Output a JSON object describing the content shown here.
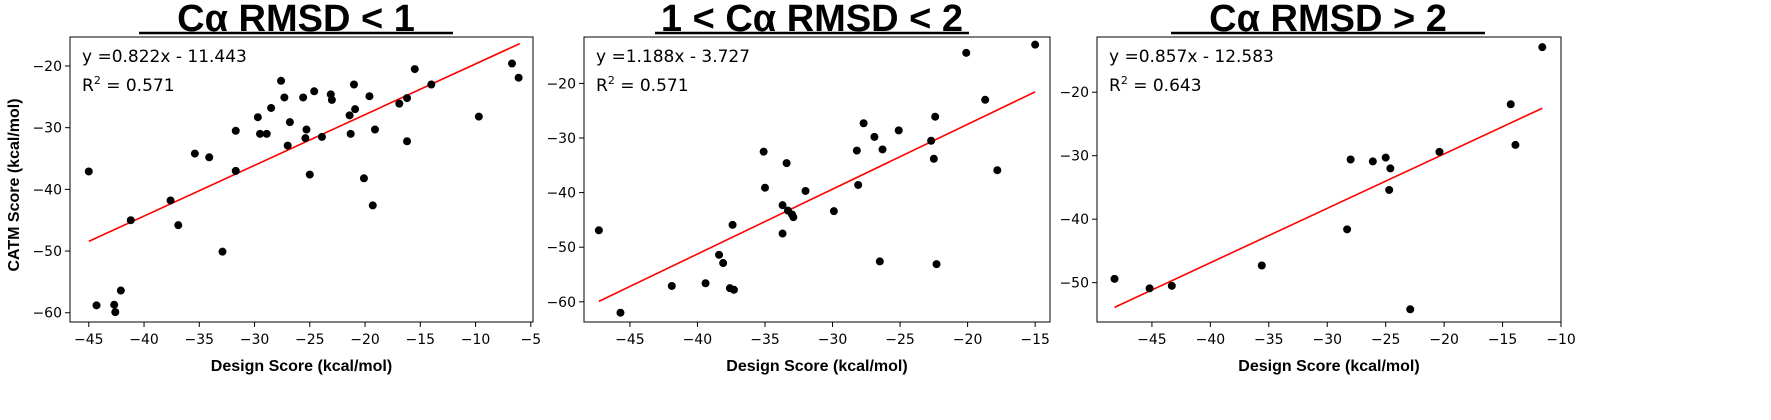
{
  "figure": {
    "y_axis_label": "CATM Score (kcal/mol)"
  },
  "chart_data": [
    {
      "type": "scatter",
      "title": "Cα RMSD < 1",
      "xlabel": "Design Score (kcal/mol)",
      "ylabel": "CATM Score (kcal/mol)",
      "xlim": [
        -46.7,
        -4.8
      ],
      "ylim": [
        -61.5,
        -15.3
      ],
      "xticks": [
        -45,
        -40,
        -35,
        -30,
        -25,
        -20,
        -15,
        -10,
        -5
      ],
      "yticks": [
        -60,
        -50,
        -40,
        -30,
        -20
      ],
      "equation": "y =0.822x - 11.443",
      "r2_label": "R",
      "r2_sup": "2",
      "r2_value": " = 0.571",
      "fit": {
        "slope": 0.822,
        "intercept": -11.443,
        "x_range": [
          -45,
          -6
        ],
        "color": "#ff0000"
      },
      "point_color": "#000000",
      "points": [
        [
          -45,
          -37.1
        ],
        [
          -44.3,
          -58.8
        ],
        [
          -42.7,
          -58.7
        ],
        [
          -42.6,
          -59.9
        ],
        [
          -42.1,
          -56.4
        ],
        [
          -41.2,
          -45.0
        ],
        [
          -37.6,
          -41.8
        ],
        [
          -36.9,
          -45.8
        ],
        [
          -35.4,
          -34.2
        ],
        [
          -34.1,
          -34.8
        ],
        [
          -32.9,
          -50.1
        ],
        [
          -31.7,
          -30.5
        ],
        [
          -31.7,
          -37.0
        ],
        [
          -29.7,
          -28.3
        ],
        [
          -29.5,
          -31.0
        ],
        [
          -28.9,
          -31.0
        ],
        [
          -28.5,
          -26.8
        ],
        [
          -27.6,
          -22.4
        ],
        [
          -27.3,
          -25.1
        ],
        [
          -27.0,
          -32.9
        ],
        [
          -26.8,
          -29.1
        ],
        [
          -25.6,
          -25.1
        ],
        [
          -25.4,
          -31.7
        ],
        [
          -25.3,
          -30.3
        ],
        [
          -25.0,
          -37.6
        ],
        [
          -24.6,
          -24.1
        ],
        [
          -23.9,
          -31.5
        ],
        [
          -23.1,
          -24.6
        ],
        [
          -23.0,
          -25.5
        ],
        [
          -21.4,
          -28.0
        ],
        [
          -21.3,
          -31.0
        ],
        [
          -21.0,
          -23.0
        ],
        [
          -20.9,
          -27.0
        ],
        [
          -20.1,
          -38.2
        ],
        [
          -19.6,
          -24.9
        ],
        [
          -19.3,
          -42.6
        ],
        [
          -19.1,
          -30.3
        ],
        [
          -16.9,
          -26.1
        ],
        [
          -16.2,
          -32.2
        ],
        [
          -16.2,
          -25.2
        ],
        [
          -15.5,
          -20.5
        ],
        [
          -14.0,
          -23.0
        ],
        [
          -9.7,
          -28.2
        ],
        [
          -6.7,
          -19.6
        ],
        [
          -6.1,
          -21.9
        ]
      ]
    },
    {
      "type": "scatter",
      "title": "1 < Cα RMSD < 2",
      "xlabel": "Design Score (kcal/mol)",
      "ylabel": "",
      "xlim": [
        -48.4,
        -13.9
      ],
      "ylim": [
        -63.7,
        -11.5
      ],
      "xticks": [
        -45,
        -40,
        -35,
        -30,
        -25,
        -20,
        -15
      ],
      "yticks": [
        -60,
        -50,
        -40,
        -30,
        -20
      ],
      "equation": "y =1.188x - 3.727",
      "r2_label": "R",
      "r2_sup": "2",
      "r2_value": " = 0.571",
      "fit": {
        "slope": 1.188,
        "intercept": -3.727,
        "x_range": [
          -47.3,
          -15.0
        ],
        "color": "#ff0000"
      },
      "point_color": "#000000",
      "points": [
        [
          -47.3,
          -46.9
        ],
        [
          -45.7,
          -62.0
        ],
        [
          -41.9,
          -57.1
        ],
        [
          -39.4,
          -56.6
        ],
        [
          -38.4,
          -51.4
        ],
        [
          -38.1,
          -52.9
        ],
        [
          -37.6,
          -57.5
        ],
        [
          -37.4,
          -45.9
        ],
        [
          -37.3,
          -57.8
        ],
        [
          -35.1,
          -32.5
        ],
        [
          -35.0,
          -39.1
        ],
        [
          -33.7,
          -42.3
        ],
        [
          -33.7,
          -47.5
        ],
        [
          -33.4,
          -34.6
        ],
        [
          -33.3,
          -43.3
        ],
        [
          -33.0,
          -44.0
        ],
        [
          -32.9,
          -44.5
        ],
        [
          -32.0,
          -39.7
        ],
        [
          -29.9,
          -43.4
        ],
        [
          -28.2,
          -32.3
        ],
        [
          -28.1,
          -38.6
        ],
        [
          -27.7,
          -27.3
        ],
        [
          -26.9,
          -29.8
        ],
        [
          -26.5,
          -52.6
        ],
        [
          -26.3,
          -32.1
        ],
        [
          -25.1,
          -28.6
        ],
        [
          -22.7,
          -30.5
        ],
        [
          -22.5,
          -33.8
        ],
        [
          -22.4,
          -26.1
        ],
        [
          -22.3,
          -53.1
        ],
        [
          -20.1,
          -14.4
        ],
        [
          -18.7,
          -23.0
        ],
        [
          -17.8,
          -35.9
        ],
        [
          -15.0,
          -12.9
        ]
      ]
    },
    {
      "type": "scatter",
      "title": "Cα RMSD > 2",
      "xlabel": "Design Score (kcal/mol)",
      "ylabel": "",
      "xlim": [
        -49.7,
        -10.0
      ],
      "ylim": [
        -56.2,
        -11.3
      ],
      "xticks": [
        -45,
        -40,
        -35,
        -30,
        -25,
        -20,
        -15,
        -10
      ],
      "yticks": [
        -50,
        -40,
        -30,
        -20
      ],
      "equation": "y =0.857x - 12.583",
      "r2_label": "R",
      "r2_sup": "2",
      "r2_value": " = 0.643",
      "fit": {
        "slope": 0.857,
        "intercept": -12.583,
        "x_range": [
          -48.2,
          -11.6
        ],
        "color": "#ff0000"
      },
      "point_color": "#000000",
      "points": [
        [
          -48.2,
          -49.4
        ],
        [
          -45.2,
          -50.9
        ],
        [
          -43.3,
          -50.5
        ],
        [
          -35.6,
          -47.3
        ],
        [
          -28.3,
          -41.6
        ],
        [
          -28.0,
          -30.6
        ],
        [
          -26.1,
          -30.9
        ],
        [
          -25.0,
          -30.3
        ],
        [
          -24.7,
          -35.4
        ],
        [
          -24.6,
          -32.0
        ],
        [
          -22.9,
          -54.2
        ],
        [
          -20.4,
          -29.4
        ],
        [
          -14.3,
          -21.9
        ],
        [
          -13.9,
          -28.3
        ],
        [
          -11.6,
          -12.9
        ]
      ]
    }
  ]
}
